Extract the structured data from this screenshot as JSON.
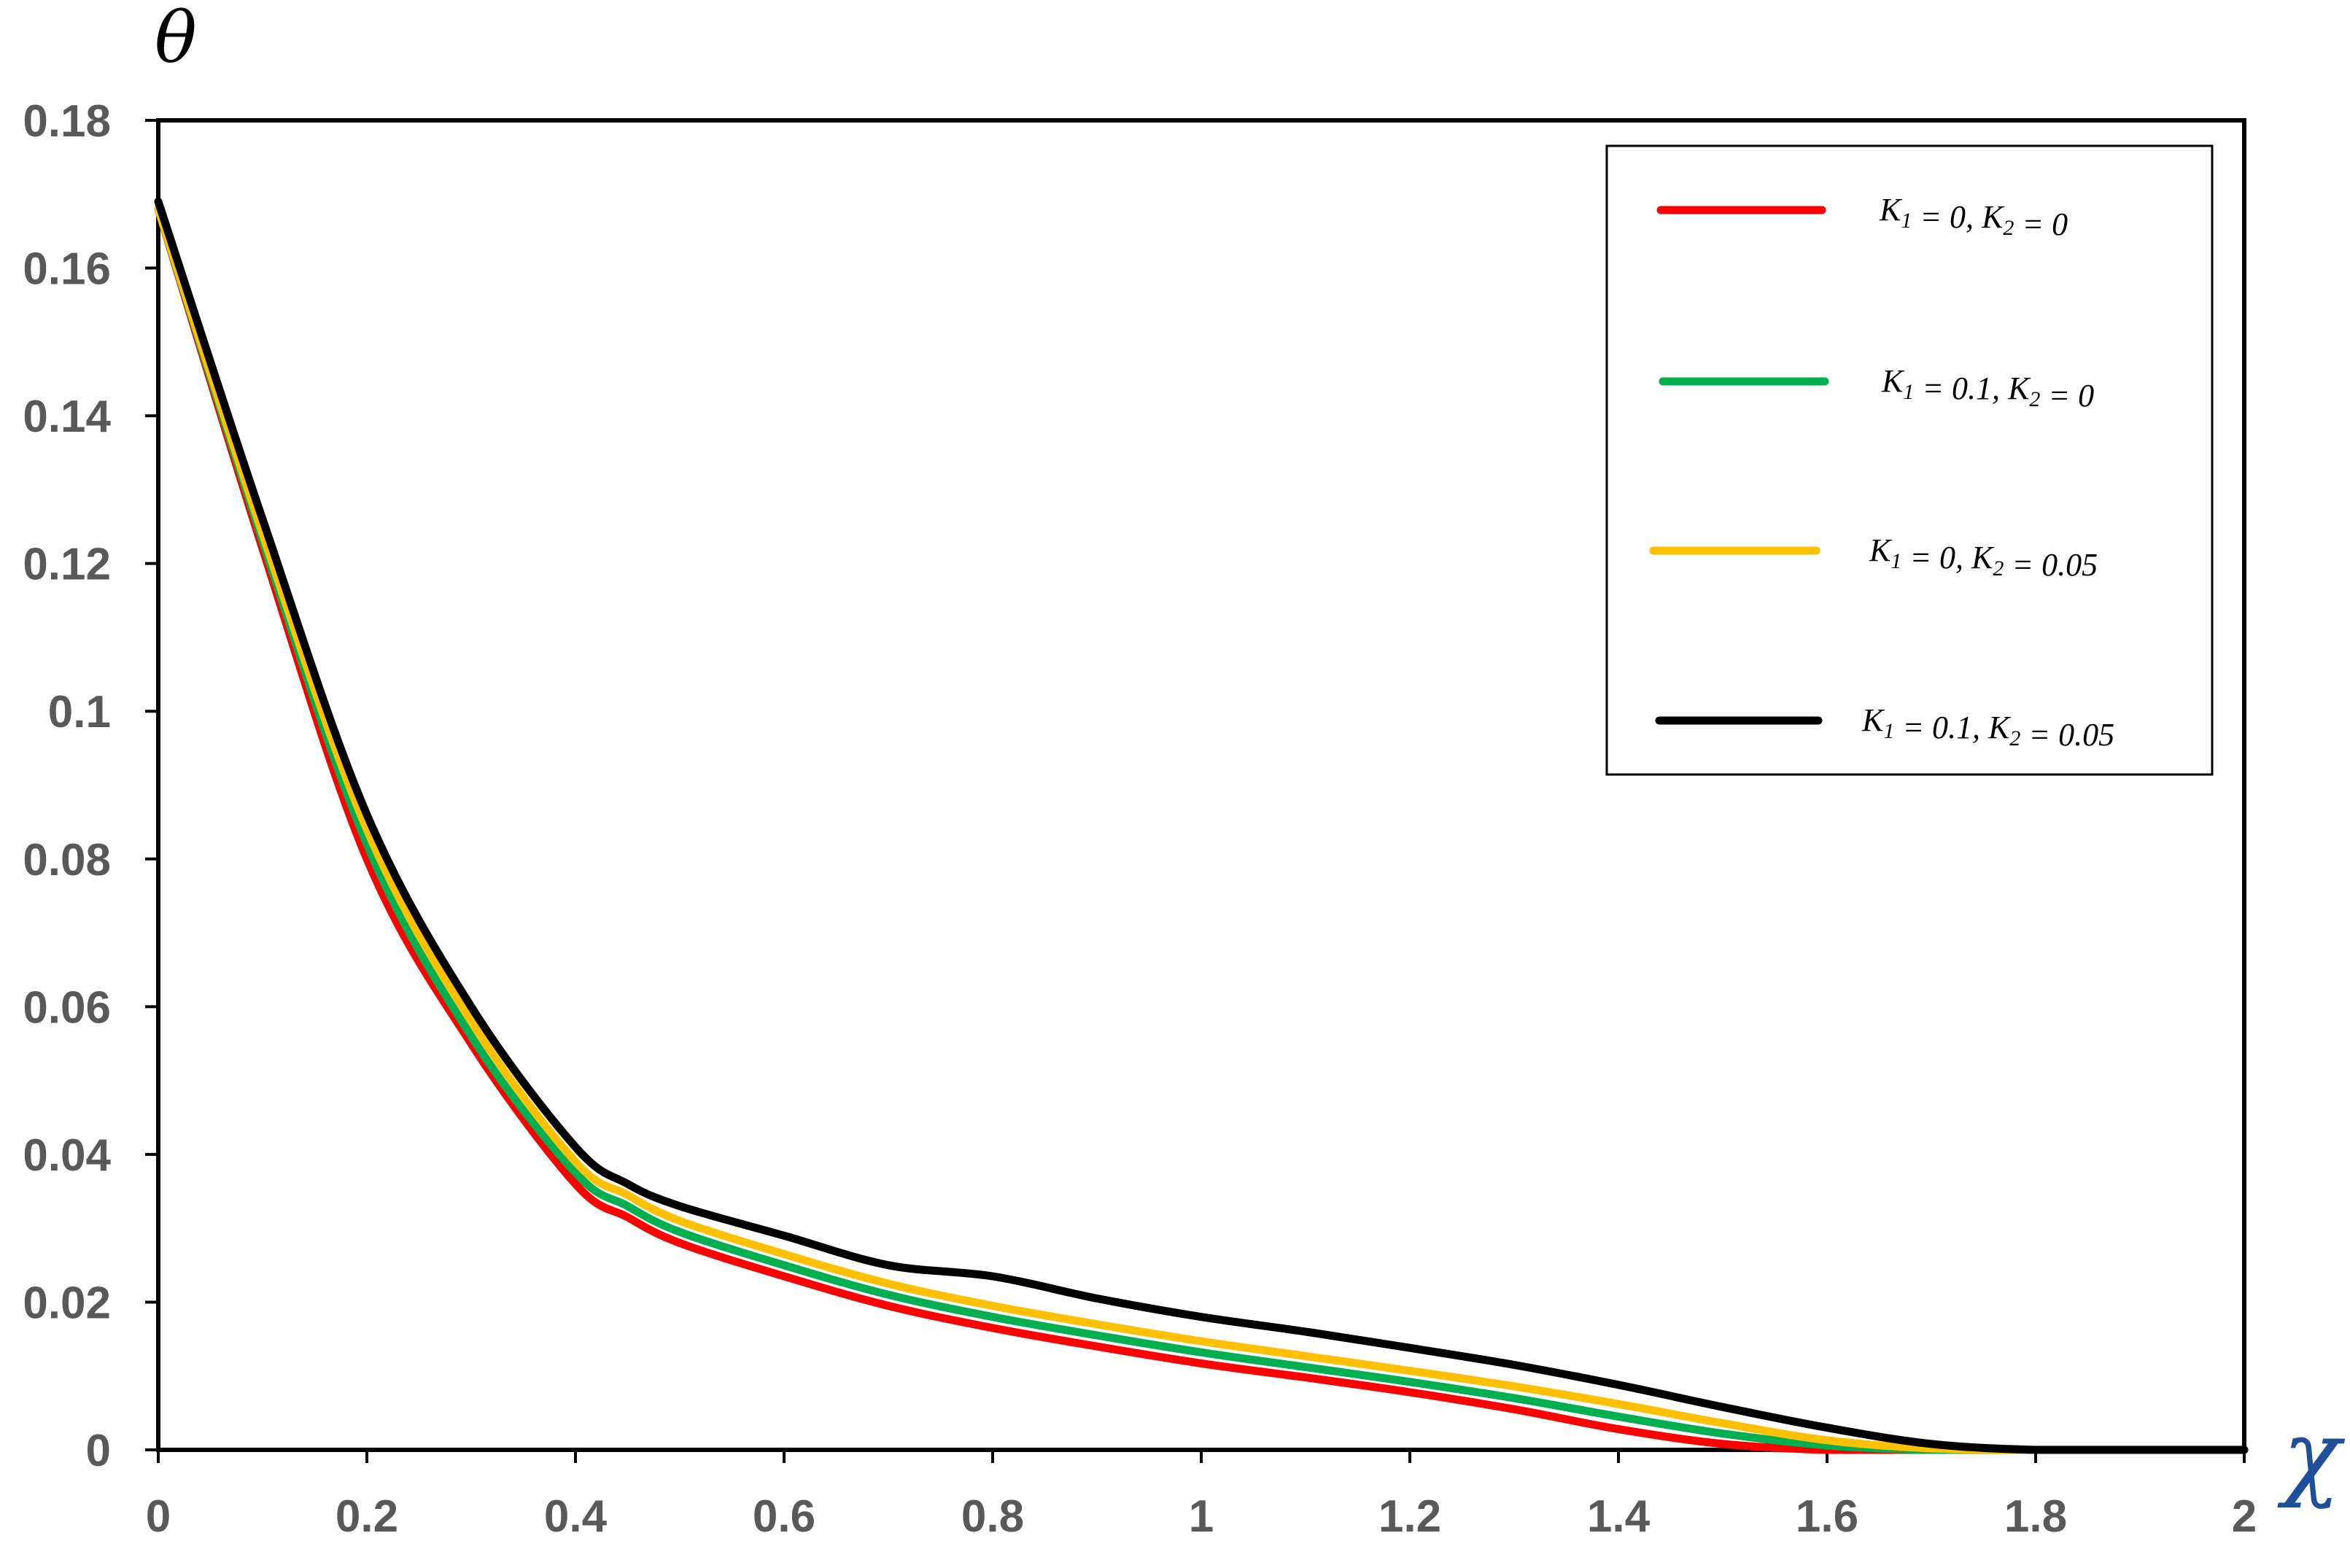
{
  "chart_data": {
    "type": "line",
    "title": "",
    "xlabel": "χ",
    "ylabel": "θ",
    "xlim": [
      0,
      2
    ],
    "ylim": [
      0,
      0.18
    ],
    "x_ticks": [
      "0",
      "0.2",
      "0.4",
      "0.6",
      "0.8",
      "1",
      "1.2",
      "1.4",
      "1.6",
      "1.8",
      "2"
    ],
    "y_ticks": [
      "0",
      "0.02",
      "0.04",
      "0.06",
      "0.08",
      "0.1",
      "0.12",
      "0.14",
      "0.16",
      "0.18"
    ],
    "grid": false,
    "legend_position": "top-right",
    "x": [
      0,
      0.1,
      0.2,
      0.3,
      0.4,
      0.45,
      0.5,
      0.6,
      0.7,
      0.8,
      0.9,
      1.0,
      1.1,
      1.2,
      1.3,
      1.4,
      1.5,
      1.6,
      1.7,
      1.8,
      1.9,
      2.0
    ],
    "series": [
      {
        "name": "K1 = 0,   K2 = 0",
        "label": {
          "k1_value": "0,",
          "k2_value": "0"
        },
        "color": "#ff0000",
        "values": [
          0.168,
          0.122,
          0.08,
          0.055,
          0.036,
          0.0315,
          0.028,
          0.0235,
          0.0195,
          0.0165,
          0.014,
          0.0117,
          0.0098,
          0.0078,
          0.0055,
          0.0028,
          0.0008,
          0.0,
          0.0,
          0.0,
          0.0,
          0.0
        ]
      },
      {
        "name": "K1 = 0.1,   K2 = 0",
        "label": {
          "k1_value": "0.1,",
          "k2_value": "0"
        },
        "color": "#00b050",
        "values": [
          0.168,
          0.123,
          0.082,
          0.056,
          0.0375,
          0.033,
          0.0295,
          0.025,
          0.021,
          0.018,
          0.0155,
          0.0132,
          0.0112,
          0.0092,
          0.007,
          0.0045,
          0.0022,
          0.0006,
          0.0,
          0.0,
          0.0,
          0.0
        ]
      },
      {
        "name": "K1 = 0,   K2 = 0.05",
        "label": {
          "k1_value": "0,",
          "k2_value": "0.05"
        },
        "color": "#ffc000",
        "values": [
          0.168,
          0.124,
          0.084,
          0.058,
          0.039,
          0.0345,
          0.031,
          0.0265,
          0.0225,
          0.0195,
          0.017,
          0.0147,
          0.0127,
          0.0107,
          0.0086,
          0.0062,
          0.0036,
          0.0013,
          0.0002,
          0.0,
          0.0,
          0.0
        ]
      },
      {
        "name": "K1 = 0.1,   K2 = 0.05",
        "label": {
          "k1_value": "0.1,",
          "k2_value": "0.05"
        },
        "color": "#000000",
        "values": [
          0.169,
          0.126,
          0.086,
          0.06,
          0.041,
          0.036,
          0.033,
          0.029,
          0.025,
          0.0235,
          0.0205,
          0.018,
          0.016,
          0.0138,
          0.0115,
          0.0088,
          0.0058,
          0.003,
          0.0008,
          0.0,
          0.0,
          0.0
        ]
      }
    ]
  }
}
